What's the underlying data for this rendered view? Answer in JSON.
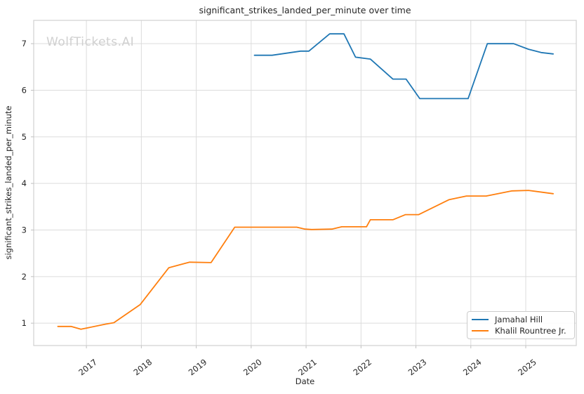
{
  "chart": {
    "title": "significant_strikes_landed_per_minute over time",
    "xlabel": "Date",
    "ylabel": "significant_strikes_landed_per_minute",
    "watermark": "WolfTickets.AI"
  },
  "legend": {
    "position": "lower right",
    "items": [
      {
        "label": "Jamahal Hill",
        "color": "#1f77b4"
      },
      {
        "label": "Khalil Rountree Jr.",
        "color": "#ff7f0e"
      }
    ]
  },
  "colors": {
    "background": "#ffffff",
    "grid": "#dcdcdc",
    "axis_border": "#d0d0d0",
    "tick_mark": "#c0c0c0",
    "text": "#262626",
    "watermark": "#d0d0d0",
    "series_blue": "#1f77b4",
    "series_orange": "#ff7f0e"
  },
  "chart_data": {
    "type": "line",
    "title": "significant_strikes_landed_per_minute over time",
    "xlabel": "Date",
    "ylabel": "significant_strikes_landed_per_minute",
    "grid": true,
    "legend_position": "lower right",
    "x_range": [
      2016.04,
      2025.92
    ],
    "y_range": [
      0.52,
      7.5
    ],
    "x_ticks": [
      2017,
      2018,
      2019,
      2020,
      2021,
      2022,
      2023,
      2024,
      2025
    ],
    "x_tick_labels": [
      "2017",
      "2018",
      "2019",
      "2020",
      "2021",
      "2022",
      "2023",
      "2024",
      "2025"
    ],
    "y_ticks": [
      1,
      2,
      3,
      4,
      5,
      6,
      7
    ],
    "y_tick_labels": [
      "1",
      "2",
      "3",
      "4",
      "5",
      "6",
      "7"
    ],
    "series": [
      {
        "name": "Jamahal Hill",
        "color": "#1f77b4",
        "points": [
          [
            2020.06,
            6.75
          ],
          [
            2020.38,
            6.75
          ],
          [
            2020.9,
            6.84
          ],
          [
            2021.05,
            6.84
          ],
          [
            2021.43,
            7.21
          ],
          [
            2021.69,
            7.21
          ],
          [
            2021.9,
            6.71
          ],
          [
            2022.17,
            6.67
          ],
          [
            2022.58,
            6.24
          ],
          [
            2022.82,
            6.24
          ],
          [
            2023.07,
            5.82
          ],
          [
            2023.95,
            5.82
          ],
          [
            2024.3,
            7.0
          ],
          [
            2024.78,
            7.0
          ],
          [
            2025.05,
            6.88
          ],
          [
            2025.28,
            6.81
          ],
          [
            2025.5,
            6.78
          ]
        ]
      },
      {
        "name": "Khalil Rountree Jr.",
        "color": "#ff7f0e",
        "points": [
          [
            2016.48,
            0.93
          ],
          [
            2016.72,
            0.93
          ],
          [
            2016.9,
            0.87
          ],
          [
            2017.35,
            0.98
          ],
          [
            2017.5,
            1.01
          ],
          [
            2017.98,
            1.4
          ],
          [
            2018.5,
            2.19
          ],
          [
            2018.88,
            2.31
          ],
          [
            2019.27,
            2.3
          ],
          [
            2019.7,
            3.06
          ],
          [
            2020.83,
            3.06
          ],
          [
            2020.98,
            3.02
          ],
          [
            2021.1,
            3.01
          ],
          [
            2021.47,
            3.02
          ],
          [
            2021.65,
            3.07
          ],
          [
            2022.1,
            3.07
          ],
          [
            2022.17,
            3.22
          ],
          [
            2022.58,
            3.22
          ],
          [
            2022.81,
            3.33
          ],
          [
            2023.05,
            3.33
          ],
          [
            2023.6,
            3.65
          ],
          [
            2023.92,
            3.73
          ],
          [
            2024.28,
            3.73
          ],
          [
            2024.75,
            3.84
          ],
          [
            2025.05,
            3.85
          ],
          [
            2025.5,
            3.78
          ]
        ]
      }
    ]
  }
}
